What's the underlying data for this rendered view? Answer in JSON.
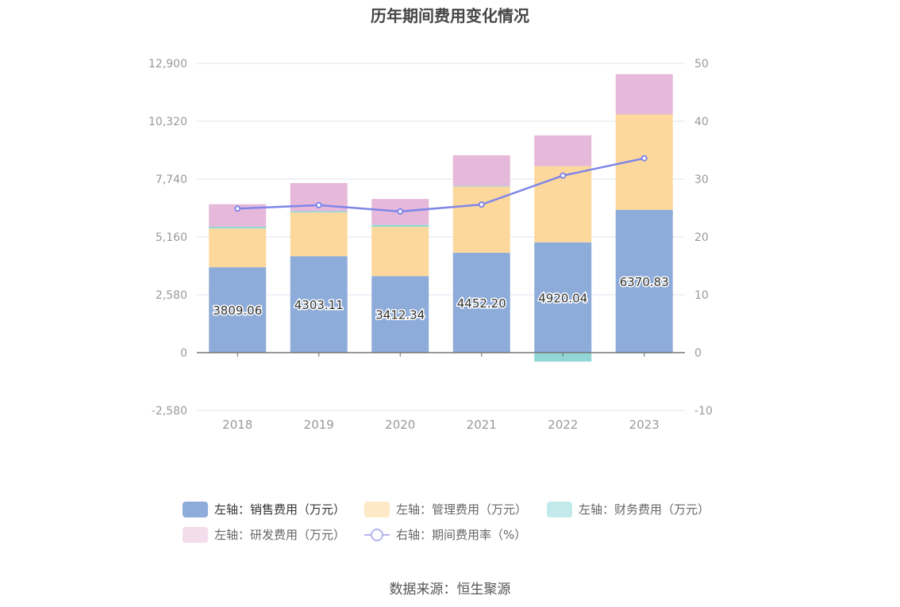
{
  "chart_data": {
    "type": "bar",
    "title": "历年期间费用变化情况",
    "categories": [
      "2018",
      "2019",
      "2020",
      "2021",
      "2022",
      "2023"
    ],
    "left_axis": {
      "ylim": [
        -2580,
        12900
      ],
      "ticks": [
        "12,900",
        "10,320",
        "7,740",
        "5,160",
        "2,580",
        "0",
        "-2,580"
      ],
      "tick_values": [
        12900,
        10320,
        7740,
        5160,
        2580,
        0,
        -2580
      ]
    },
    "right_axis": {
      "ylim": [
        -10,
        50
      ],
      "ticks": [
        "50",
        "40",
        "30",
        "20",
        "10",
        "0",
        "-10"
      ],
      "tick_values": [
        50,
        40,
        30,
        20,
        10,
        0,
        -10
      ]
    },
    "series": [
      {
        "name": "左轴：销售费用（万元）",
        "axis": "left",
        "kind": "bar",
        "color": "#8eacd9",
        "values": [
          3809.06,
          4303.11,
          3412.34,
          4452.2,
          4920.04,
          6370.83
        ],
        "labels": [
          "3809.06",
          "4303.11",
          "3412.34",
          "4452.20",
          "4920.04",
          "6370.83"
        ]
      },
      {
        "name": "左轴：管理费用（万元）",
        "axis": "left",
        "kind": "bar",
        "color": "#fdd89c",
        "legend_color": "#fde9c6",
        "values": [
          1730,
          1950,
          2200,
          2950,
          3400,
          4250
        ]
      },
      {
        "name": "左轴：财务费用（万元）",
        "axis": "left",
        "kind": "bar",
        "color": "#92d6d6",
        "legend_color": "#c2eaea",
        "values": [
          80,
          60,
          90,
          30,
          -400,
          -30
        ]
      },
      {
        "name": "左轴：研发费用（万元）",
        "axis": "left",
        "kind": "bar",
        "color": "#e6b9da",
        "legend_color": "#f3dcec",
        "values": [
          1000,
          1250,
          1150,
          1370,
          1370,
          1800
        ]
      },
      {
        "name": "右轴：期间费用率（%）",
        "axis": "right",
        "kind": "line",
        "color": "#7f86e8",
        "values": [
          24.9,
          25.5,
          24.4,
          25.6,
          30.6,
          33.6
        ]
      }
    ]
  },
  "source": "数据来源：恒生聚源"
}
